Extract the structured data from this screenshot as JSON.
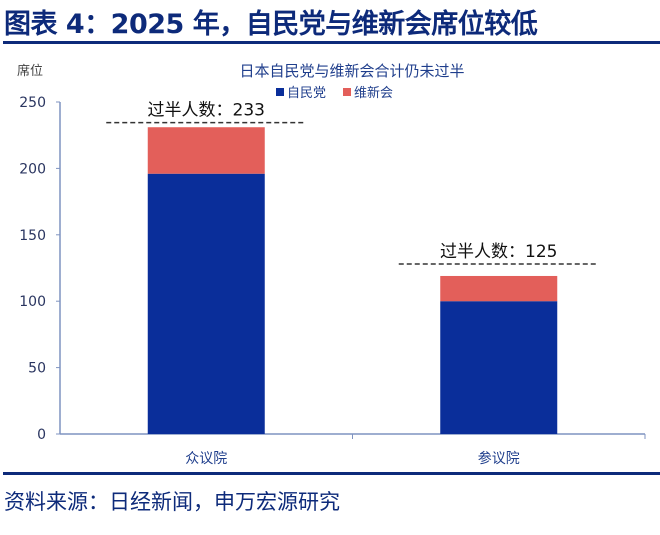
{
  "header": {
    "title": "图表 4：2025 年，自民党与维新会席位较低"
  },
  "source": "资料来源：日经新闻，申万宏源研究",
  "chart_data": {
    "type": "bar",
    "stacked": true,
    "title": "日本自民党与维新会合计仍未过半",
    "ylabel": "席位",
    "xlabel": "",
    "ylim": [
      0,
      250
    ],
    "yticks": [
      0,
      50,
      100,
      150,
      200,
      250
    ],
    "categories": [
      "众议院",
      "参议院"
    ],
    "series": [
      {
        "name": "自民党",
        "values": [
          196,
          100
        ],
        "color": "#0a2e9a"
      },
      {
        "name": "维新会",
        "values": [
          35,
          19
        ],
        "color": "#e35f5a"
      }
    ],
    "legend": "top-center",
    "grid": false,
    "annotations": [
      {
        "text": "过半人数：233",
        "value": 233,
        "category": "众议院"
      },
      {
        "text": "过半人数：125",
        "value": 125,
        "category": "参议院"
      }
    ]
  }
}
